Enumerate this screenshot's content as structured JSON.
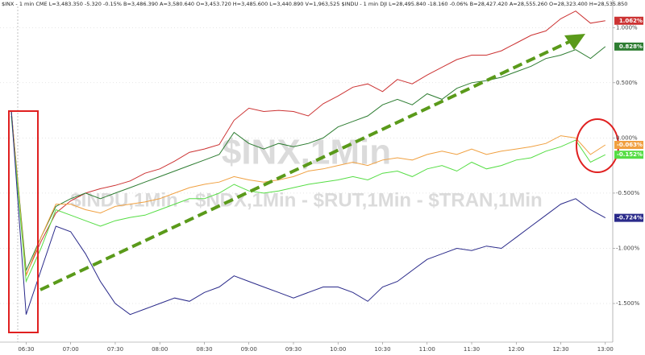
{
  "chart_data": {
    "type": "line",
    "header": "$INX - 1 min  CME  L=3,483.350  -5.320  -0.15%  B=3,486.390  A=3,580.640  O=3,453.720  H=3,485.600  L=3,440.890  V=1,963,525  $INDU - 1 min  DJI  L=28,495.840  -18.160  -0.06%  B=28,427.420  A=28,555.260  O=28,323.400  H=28,535.850",
    "watermark": "$INX,1Min",
    "watermark_sub": "$INDU,1Min - $NDX,1Min - $RUT,1Min - $TRAN,1Min",
    "categories": [
      null,
      "06:30",
      null,
      null,
      "07:00",
      null,
      null,
      "07:30",
      null,
      null,
      "08:00",
      null,
      null,
      "08:30",
      null,
      null,
      "09:00",
      null,
      null,
      "09:30",
      null,
      null,
      "10:00",
      null,
      null,
      "10:30",
      null,
      null,
      "11:00",
      null,
      null,
      "11:30",
      null,
      null,
      "12:00",
      null,
      null,
      "12:30",
      null,
      null,
      "13:00"
    ],
    "ylim": [
      -1.85,
      1.25
    ],
    "yticks": [
      {
        "value": 1,
        "label": "1.000%"
      },
      {
        "value": 0.5,
        "label": "0.500%"
      },
      {
        "value": 0,
        "label": "0.000%"
      },
      {
        "value": -0.5,
        "label": "-0.500%"
      },
      {
        "value": -1,
        "label": "-1.000%"
      },
      {
        "value": -1.5,
        "label": "-1.500%"
      }
    ],
    "series": [
      {
        "color": "#cc3333",
        "values": [
          0.24,
          -1.24,
          -0.94,
          -0.68,
          -0.57,
          -0.5,
          -0.46,
          -0.43,
          -0.39,
          -0.32,
          -0.28,
          -0.21,
          -0.13,
          -0.1,
          -0.06,
          0.16,
          0.27,
          0.24,
          0.25,
          0.24,
          0.2,
          0.31,
          0.38,
          0.46,
          0.49,
          0.42,
          0.53,
          0.49,
          0.57,
          0.64,
          0.71,
          0.75,
          0.75,
          0.79,
          0.86,
          0.93,
          0.97,
          1.08,
          1.15,
          1.04,
          1.062
        ],
        "value_labels": [
          null,
          null,
          null,
          null,
          null,
          null,
          null,
          null,
          null,
          null,
          null,
          null,
          null,
          null,
          null,
          null,
          null,
          null,
          null,
          null,
          null,
          null,
          null,
          null,
          null,
          null,
          null,
          null,
          null,
          null,
          null,
          null,
          null,
          null,
          null,
          null,
          null,
          null,
          null,
          null,
          "1.062%"
        ]
      },
      {
        "color": "#2e7d32",
        "values": [
          0.24,
          -1.2,
          -0.9,
          -0.62,
          -0.55,
          -0.5,
          -0.55,
          -0.5,
          -0.45,
          -0.4,
          -0.35,
          -0.3,
          -0.25,
          -0.2,
          -0.15,
          0.05,
          -0.05,
          -0.1,
          -0.05,
          -0.08,
          -0.05,
          0.0,
          0.1,
          0.15,
          0.2,
          0.3,
          0.35,
          0.3,
          0.4,
          0.35,
          0.45,
          0.5,
          0.52,
          0.55,
          0.6,
          0.65,
          0.72,
          0.75,
          0.8,
          0.72,
          0.828
        ],
        "value_labels": [
          null,
          null,
          null,
          null,
          null,
          null,
          null,
          null,
          null,
          null,
          null,
          null,
          null,
          null,
          null,
          null,
          null,
          null,
          null,
          null,
          null,
          null,
          null,
          null,
          null,
          null,
          null,
          null,
          null,
          null,
          null,
          null,
          null,
          null,
          null,
          null,
          null,
          null,
          null,
          null,
          "0.828%"
        ]
      },
      {
        "color": "#f0a040",
        "values": [
          0.25,
          -1.25,
          -0.9,
          -0.6,
          -0.6,
          -0.65,
          -0.68,
          -0.62,
          -0.6,
          -0.58,
          -0.55,
          -0.5,
          -0.45,
          -0.42,
          -0.4,
          -0.35,
          -0.38,
          -0.4,
          -0.38,
          -0.35,
          -0.3,
          -0.28,
          -0.25,
          -0.22,
          -0.25,
          -0.2,
          -0.18,
          -0.2,
          -0.15,
          -0.12,
          -0.15,
          -0.1,
          -0.15,
          -0.12,
          -0.1,
          -0.08,
          -0.05,
          0.02,
          0.0,
          -0.15,
          -0.063
        ],
        "value_labels": [
          null,
          null,
          null,
          null,
          null,
          null,
          null,
          null,
          null,
          null,
          null,
          null,
          null,
          null,
          null,
          null,
          null,
          null,
          null,
          null,
          null,
          null,
          null,
          null,
          null,
          null,
          null,
          null,
          null,
          null,
          null,
          null,
          null,
          null,
          null,
          null,
          null,
          null,
          null,
          null,
          "-0.063%"
        ]
      },
      {
        "color": "#55dd44",
        "values": [
          0.2,
          -1.3,
          -1.0,
          -0.65,
          -0.7,
          -0.75,
          -0.8,
          -0.75,
          -0.72,
          -0.7,
          -0.65,
          -0.6,
          -0.55,
          -0.55,
          -0.5,
          -0.42,
          -0.48,
          -0.5,
          -0.48,
          -0.45,
          -0.42,
          -0.4,
          -0.38,
          -0.35,
          -0.38,
          -0.32,
          -0.3,
          -0.35,
          -0.28,
          -0.25,
          -0.3,
          -0.22,
          -0.28,
          -0.25,
          -0.2,
          -0.18,
          -0.12,
          -0.08,
          -0.02,
          -0.22,
          -0.152
        ],
        "value_labels": [
          null,
          null,
          null,
          null,
          null,
          null,
          null,
          null,
          null,
          null,
          null,
          null,
          null,
          null,
          null,
          null,
          null,
          null,
          null,
          null,
          null,
          null,
          null,
          null,
          null,
          null,
          null,
          null,
          null,
          null,
          null,
          null,
          null,
          null,
          null,
          null,
          null,
          null,
          null,
          null,
          "-0.152%"
        ]
      },
      {
        "color": "#2a2a8a",
        "values": [
          0.25,
          -1.6,
          -1.2,
          -0.8,
          -0.85,
          -1.05,
          -1.3,
          -1.5,
          -1.6,
          -1.55,
          -1.5,
          -1.45,
          -1.48,
          -1.4,
          -1.35,
          -1.25,
          -1.3,
          -1.35,
          -1.4,
          -1.45,
          -1.4,
          -1.35,
          -1.35,
          -1.4,
          -1.48,
          -1.35,
          -1.3,
          -1.2,
          -1.1,
          -1.05,
          -1.0,
          -1.02,
          -0.98,
          -1.0,
          -0.9,
          -0.8,
          -0.7,
          -0.6,
          -0.55,
          -0.65,
          -0.724
        ],
        "value_labels": [
          null,
          null,
          null,
          null,
          null,
          null,
          null,
          null,
          null,
          null,
          null,
          null,
          null,
          null,
          null,
          null,
          null,
          null,
          null,
          null,
          null,
          null,
          null,
          null,
          null,
          null,
          null,
          null,
          null,
          null,
          null,
          null,
          null,
          null,
          null,
          null,
          null,
          null,
          null,
          null,
          "-0.724%"
        ]
      }
    ]
  }
}
